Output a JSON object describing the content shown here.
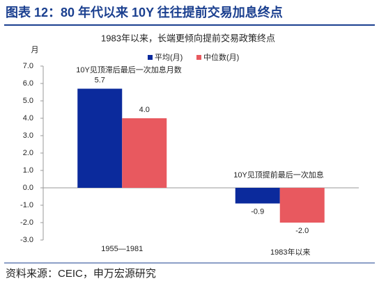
{
  "page": {
    "title": "图表 12：80 年代以来 10Y 往往提前交易加息终点",
    "source": "资料来源：CEIC，申万宏源研究"
  },
  "chart_data": {
    "type": "bar",
    "subtitle": "1983年以来，长端更倾向提前交易政策终点",
    "y_label": "月",
    "annotations": [
      "10Y见顶滞后最后一次加息月数",
      "10Y见顶提前最后一次加息"
    ],
    "categories": [
      "1955—1981",
      "1983年以来"
    ],
    "series": [
      {
        "name": "平均(月)",
        "color": "#0b2a9c",
        "values": [
          5.7,
          -0.9
        ],
        "value_labels": [
          "5.7",
          "-0.9"
        ]
      },
      {
        "name": "中位数(月)",
        "color": "#e8595f",
        "values": [
          4,
          -2
        ],
        "value_labels": [
          "4.0",
          "-2.0"
        ]
      }
    ],
    "ylim": [
      -3,
      7
    ],
    "yticks": [
      {
        "value": 7,
        "label": "7.0"
      },
      {
        "value": 6,
        "label": "6.0"
      },
      {
        "value": 5,
        "label": "5.0"
      },
      {
        "value": 4,
        "label": "4.0"
      },
      {
        "value": 3,
        "label": "3.0"
      },
      {
        "value": 2,
        "label": "2.0"
      },
      {
        "value": 1,
        "label": "1.0"
      },
      {
        "value": 0,
        "label": "0.0"
      },
      {
        "value": -1,
        "label": "-1.0"
      },
      {
        "value": -2,
        "label": "-2.0"
      },
      {
        "value": -3,
        "label": "-3.0"
      }
    ],
    "legend": "top-right"
  }
}
